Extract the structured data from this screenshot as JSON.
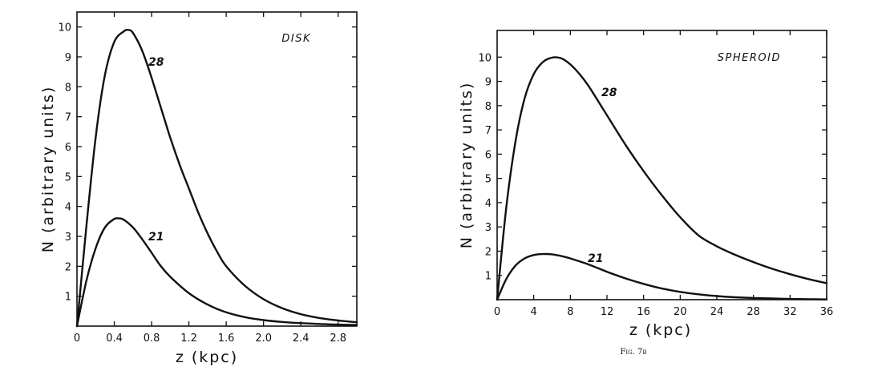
{
  "caption": "Fig. 7b",
  "chart_data": [
    {
      "type": "line",
      "panel_label": "DISK",
      "xlabel": "z (kpc)",
      "ylabel": "N (arbitrary units)",
      "xlim": [
        0,
        3.0
      ],
      "ylim": [
        0,
        10.5
      ],
      "x_ticks": [
        0,
        0.4,
        0.8,
        1.2,
        1.6,
        2.0,
        2.4,
        2.8
      ],
      "x_tick_labels": [
        "0",
        "0.4",
        "0.8",
        "1.2",
        "1.6",
        "2.0",
        "2.4",
        "2.8"
      ],
      "y_ticks": [
        1,
        2,
        3,
        4,
        5,
        6,
        7,
        8,
        9,
        10
      ],
      "y_tick_labels": [
        "1",
        "2",
        "3",
        "4",
        "5",
        "6",
        "7",
        "8",
        "9",
        "10"
      ],
      "series": [
        {
          "name": "28",
          "x": [
            0,
            0.1,
            0.2,
            0.3,
            0.4,
            0.5,
            0.55,
            0.6,
            0.7,
            0.8,
            0.9,
            1.0,
            1.1,
            1.2,
            1.3,
            1.4,
            1.5,
            1.6,
            1.8,
            2.0,
            2.2,
            2.4,
            2.6,
            2.8,
            3.0
          ],
          "y": [
            0,
            3.3,
            6.3,
            8.4,
            9.5,
            9.85,
            9.9,
            9.8,
            9.2,
            8.3,
            7.3,
            6.3,
            5.4,
            4.6,
            3.8,
            3.1,
            2.5,
            2.0,
            1.35,
            0.9,
            0.6,
            0.4,
            0.27,
            0.19,
            0.13
          ]
        },
        {
          "name": "21",
          "x": [
            0,
            0.1,
            0.2,
            0.3,
            0.4,
            0.45,
            0.5,
            0.6,
            0.7,
            0.8,
            0.9,
            1.0,
            1.2,
            1.4,
            1.6,
            1.8,
            2.0,
            2.2,
            2.4,
            2.8,
            3.0
          ],
          "y": [
            0,
            1.5,
            2.6,
            3.3,
            3.58,
            3.6,
            3.56,
            3.3,
            2.9,
            2.45,
            2.0,
            1.65,
            1.1,
            0.72,
            0.46,
            0.3,
            0.2,
            0.14,
            0.1,
            0.05,
            0.04
          ]
        }
      ]
    },
    {
      "type": "line",
      "panel_label": "SPHEROID",
      "xlabel": "z (kpc)",
      "ylabel": "N (arbitrary units)",
      "xlim": [
        0,
        36
      ],
      "ylim": [
        0,
        11.1
      ],
      "x_ticks": [
        0,
        4,
        8,
        12,
        16,
        20,
        24,
        28,
        32,
        36
      ],
      "x_tick_labels": [
        "0",
        "4",
        "8",
        "12",
        "16",
        "20",
        "24",
        "28",
        "32",
        "36"
      ],
      "y_ticks": [
        1,
        2,
        3,
        4,
        5,
        6,
        7,
        8,
        9,
        10
      ],
      "y_tick_labels": [
        "1",
        "2",
        "3",
        "4",
        "5",
        "6",
        "7",
        "8",
        "9",
        "10"
      ],
      "series": [
        {
          "name": "28",
          "x": [
            0,
            1,
            2,
            3,
            4,
            5,
            6,
            7,
            8,
            9,
            10,
            12,
            14,
            16,
            18,
            20,
            22,
            24,
            26,
            28,
            30,
            32,
            34,
            36
          ],
          "y": [
            0,
            3.8,
            6.5,
            8.3,
            9.3,
            9.8,
            9.98,
            9.95,
            9.7,
            9.3,
            8.8,
            7.6,
            6.4,
            5.3,
            4.3,
            3.4,
            2.65,
            2.2,
            1.85,
            1.55,
            1.28,
            1.05,
            0.85,
            0.68
          ]
        },
        {
          "name": "21",
          "x": [
            0,
            1,
            2,
            3,
            4,
            5,
            6,
            7,
            8,
            10,
            12,
            14,
            16,
            18,
            20,
            22,
            24,
            26,
            28,
            30,
            32,
            34,
            36
          ],
          "y": [
            0,
            0.85,
            1.4,
            1.7,
            1.84,
            1.88,
            1.87,
            1.8,
            1.7,
            1.45,
            1.15,
            0.88,
            0.65,
            0.46,
            0.32,
            0.22,
            0.15,
            0.1,
            0.07,
            0.05,
            0.03,
            0.02,
            0.01
          ]
        }
      ]
    }
  ]
}
